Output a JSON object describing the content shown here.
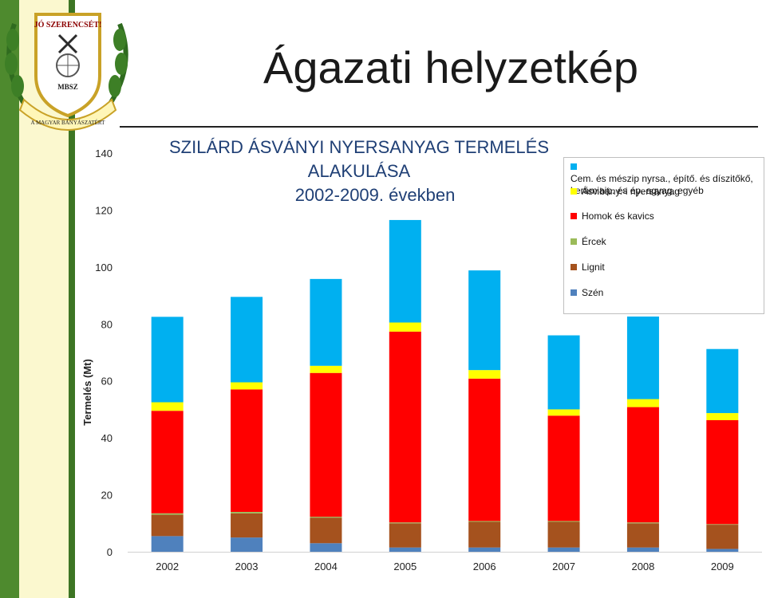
{
  "page": {
    "title": "Ágazati helyzetkép",
    "logo_text": [
      "JÓ SZERENCSÉT!",
      "MBSZ",
      "A MAGYAR BÁNYÁSZATÉRT"
    ]
  },
  "chart_data": {
    "type": "bar",
    "stacked": true,
    "title": "SZILÁRD ÁSVÁNYI NYERSANYAG TERMELÉS ALAKULÁSA",
    "subtitle": "2002-2009. években",
    "xlabel": "",
    "ylabel": "Termelés (Mt)",
    "ylim": [
      0,
      140
    ],
    "yticks": [
      0,
      20,
      40,
      60,
      80,
      100,
      120,
      140
    ],
    "grid": false,
    "legend_position": "top-right",
    "categories": [
      "2002",
      "2003",
      "2004",
      "2005",
      "2006",
      "2007",
      "2008",
      "2009"
    ],
    "series": [
      {
        "name": "Szén",
        "color": "#4f81bd",
        "values": [
          5.5,
          5,
          3,
          1.5,
          1.5,
          1.5,
          1.5,
          1
        ]
      },
      {
        "name": "Lignit",
        "color": "#a5521e",
        "values": [
          7.5,
          8.5,
          9,
          8.5,
          9,
          9,
          8.5,
          8.5
        ]
      },
      {
        "name": "Ércek",
        "color": "#9bbb59",
        "values": [
          0.5,
          0.5,
          0.3,
          0.3,
          0.3,
          0.3,
          0.3,
          0.2
        ]
      },
      {
        "name": "Homok és kavics",
        "color": "#ff0000",
        "values": [
          36,
          43,
          50.5,
          67,
          50,
          37,
          40.5,
          36.5
        ]
      },
      {
        "name": "Ásv.bány.-i nyersanyag",
        "color": "#ffff00",
        "values": [
          3,
          2.5,
          2.5,
          3.2,
          3,
          2.2,
          2.8,
          2.5
        ]
      },
      {
        "name": "Cem. és mészip nyrsa., építő. és díszitőkő, kerámiaip. és ép. agyag, egyéb",
        "color": "#00b0f0",
        "values": [
          30,
          30,
          30.5,
          36,
          35,
          26,
          29,
          22.5
        ]
      }
    ]
  }
}
